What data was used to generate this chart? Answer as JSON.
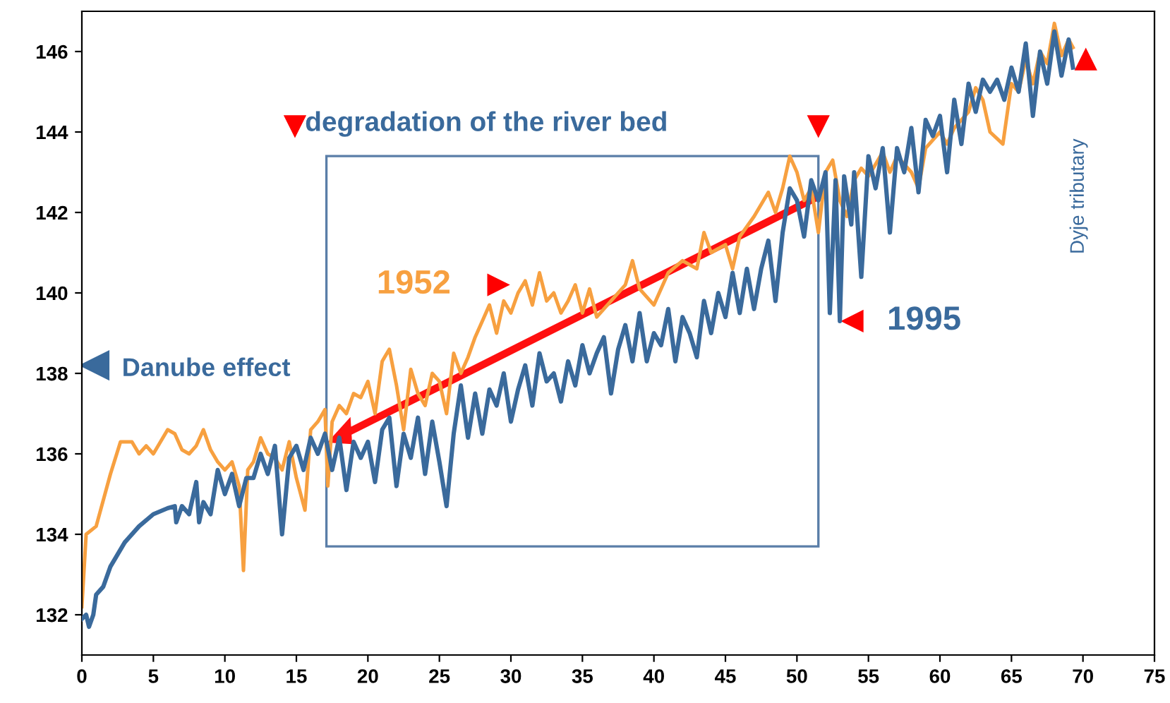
{
  "chart_data": {
    "type": "line",
    "xlim": [
      0,
      75
    ],
    "ylim": [
      131,
      147
    ],
    "xticks": [
      0,
      5,
      10,
      15,
      20,
      25,
      30,
      35,
      40,
      45,
      50,
      55,
      60,
      65,
      70,
      75
    ],
    "yticks": [
      132,
      134,
      136,
      138,
      140,
      142,
      144,
      146
    ],
    "grid": false,
    "legend": false,
    "marker": "none",
    "line_style": "solid",
    "annotations": [
      "degradation of the river bed",
      "Danube effect",
      "Dyje tributary"
    ],
    "series": [
      {
        "name": "1952",
        "color": "#f7a040",
        "x": [
          0,
          0.3,
          1,
          2,
          2.7,
          3.5,
          4,
          4.5,
          5,
          6,
          6.5,
          7,
          7.5,
          8,
          8.5,
          9,
          9.5,
          10,
          10.5,
          11,
          11.3,
          11.6,
          12,
          12.5,
          13,
          13.5,
          14,
          14.5,
          15,
          15.6,
          16,
          16.5,
          17,
          17.2,
          17.5,
          18,
          18.5,
          19,
          19.5,
          20,
          20.5,
          21,
          21.5,
          22,
          22.5,
          23,
          23.5,
          24,
          24.5,
          25,
          25.5,
          26,
          26.5,
          27,
          27.5,
          28,
          28.5,
          29,
          29.5,
          30,
          30.5,
          31,
          31.5,
          32,
          32.5,
          33,
          33.5,
          34,
          34.5,
          35,
          35.5,
          36,
          37,
          38,
          38.5,
          39,
          40,
          41,
          42,
          43,
          43.5,
          44,
          45,
          45.5,
          46,
          47,
          48,
          48.5,
          49,
          49.5,
          50,
          50.5,
          51,
          51.5,
          52,
          52.5,
          53,
          53.5,
          54,
          54.5,
          55,
          56,
          56.5,
          57,
          58,
          58.5,
          59,
          60,
          60.5,
          61,
          62,
          62.5,
          63,
          63.5,
          64.4,
          65,
          65.5,
          66,
          66.5,
          67,
          67.5,
          68,
          68.5,
          69,
          69.3
        ],
        "values": [
          132.2,
          134,
          134.2,
          135.5,
          136.3,
          136.3,
          136.0,
          136.2,
          136.0,
          136.6,
          136.5,
          136.1,
          136.0,
          136.2,
          136.6,
          136.1,
          135.8,
          135.6,
          135.8,
          135.2,
          133.1,
          135.6,
          135.8,
          136.4,
          136.0,
          135.9,
          135.6,
          136.3,
          135.4,
          134.6,
          136.6,
          136.8,
          137.1,
          135.2,
          136.8,
          137.2,
          137.0,
          137.5,
          137.4,
          137.8,
          137.0,
          138.3,
          138.6,
          137.7,
          136.6,
          138.1,
          137.5,
          137.2,
          138.0,
          137.8,
          137.0,
          138.5,
          138.0,
          138.4,
          138.9,
          139.3,
          139.7,
          139.0,
          139.8,
          139.5,
          140.0,
          140.3,
          139.7,
          140.5,
          139.8,
          140.0,
          139.5,
          139.8,
          140.2,
          139.5,
          140.1,
          139.4,
          139.8,
          140.2,
          140.8,
          140.1,
          139.7,
          140.5,
          140.8,
          140.6,
          141.5,
          141.0,
          141.2,
          140.6,
          141.4,
          141.9,
          142.5,
          142.0,
          142.6,
          143.4,
          143.0,
          142.3,
          142.6,
          141.5,
          143.0,
          143.3,
          142.3,
          141.9,
          142.8,
          143.1,
          142.9,
          143.5,
          143.0,
          143.4,
          143.0,
          142.6,
          143.6,
          144.0,
          143.7,
          144.1,
          144.5,
          145.1,
          144.8,
          144.0,
          143.7,
          145.2,
          145.0,
          145.8,
          145.2,
          146.0,
          145.7,
          146.7,
          145.9,
          146.3,
          146.1
        ]
      },
      {
        "name": "1995",
        "color": "#3a6a9c",
        "x": [
          0,
          0.3,
          0.5,
          0.8,
          1,
          1.5,
          2,
          3,
          4,
          5,
          6,
          6.5,
          6.6,
          7,
          7.5,
          8,
          8.2,
          8.5,
          9,
          9.5,
          10,
          10.5,
          11,
          11.5,
          12,
          12.5,
          13,
          13.5,
          14,
          14.5,
          15,
          15.5,
          16,
          16.5,
          17,
          17.5,
          18,
          18.5,
          19,
          19.5,
          20,
          20.5,
          21,
          21.5,
          22,
          22.5,
          23,
          23.5,
          24,
          24.5,
          25,
          25.5,
          26,
          26.5,
          27,
          27.5,
          28,
          28.5,
          29,
          29.5,
          30,
          30.5,
          31,
          31.5,
          32,
          32.5,
          33,
          33.5,
          34,
          34.5,
          35,
          35.5,
          36,
          36.5,
          37,
          37.5,
          38,
          38.5,
          39,
          39.5,
          40,
          40.5,
          41,
          41.5,
          42,
          42.5,
          43,
          43.5,
          44,
          44.5,
          45,
          45.5,
          46,
          46.5,
          47,
          47.5,
          48,
          48.5,
          49,
          49.5,
          50,
          50.5,
          51,
          51.5,
          52,
          52.3,
          52.7,
          53,
          53.3,
          53.8,
          54,
          54.5,
          55,
          55.5,
          56,
          56.5,
          57,
          57.5,
          58,
          58.5,
          59,
          59.5,
          60,
          60.5,
          61,
          61.5,
          62,
          62.5,
          63,
          63.5,
          64,
          64.5,
          65,
          65.5,
          66,
          66.5,
          67,
          67.5,
          68,
          68.5,
          69,
          69.3
        ],
        "values": [
          131.9,
          132.0,
          131.7,
          132.0,
          132.5,
          132.7,
          133.2,
          133.8,
          134.2,
          134.5,
          134.65,
          134.7,
          134.3,
          134.7,
          134.5,
          135.3,
          134.3,
          134.8,
          134.5,
          135.6,
          135.0,
          135.5,
          134.7,
          135.4,
          135.4,
          136.0,
          135.5,
          136.2,
          134.0,
          135.9,
          136.2,
          135.6,
          136.4,
          136.0,
          136.5,
          135.6,
          136.4,
          135.1,
          136.3,
          135.9,
          136.3,
          135.3,
          136.6,
          136.9,
          135.2,
          136.5,
          135.9,
          136.9,
          135.5,
          136.8,
          135.8,
          134.7,
          136.5,
          137.7,
          136.4,
          137.5,
          136.5,
          137.6,
          137.2,
          138.0,
          136.8,
          137.6,
          138.2,
          137.2,
          138.5,
          137.8,
          138.0,
          137.3,
          138.3,
          137.7,
          138.7,
          138.0,
          138.5,
          138.9,
          137.5,
          138.6,
          139.2,
          138.3,
          139.5,
          138.3,
          139.0,
          138.7,
          139.6,
          138.3,
          139.4,
          139.0,
          138.4,
          139.8,
          139.0,
          140.0,
          139.4,
          140.5,
          139.5,
          140.6,
          139.6,
          140.6,
          141.3,
          139.8,
          141.5,
          142.6,
          142.3,
          141.4,
          142.8,
          142.3,
          143.0,
          139.5,
          142.8,
          139.3,
          142.9,
          141.7,
          143.0,
          140.4,
          143.4,
          142.6,
          143.6,
          141.5,
          143.6,
          143.0,
          144.1,
          142.5,
          144.3,
          143.9,
          144.4,
          143.0,
          144.8,
          143.7,
          145.2,
          144.5,
          145.3,
          145.0,
          145.3,
          144.8,
          145.6,
          145.0,
          146.2,
          144.4,
          146.0,
          145.2,
          146.5,
          145.4,
          146.3,
          145.6
        ]
      }
    ]
  }
}
